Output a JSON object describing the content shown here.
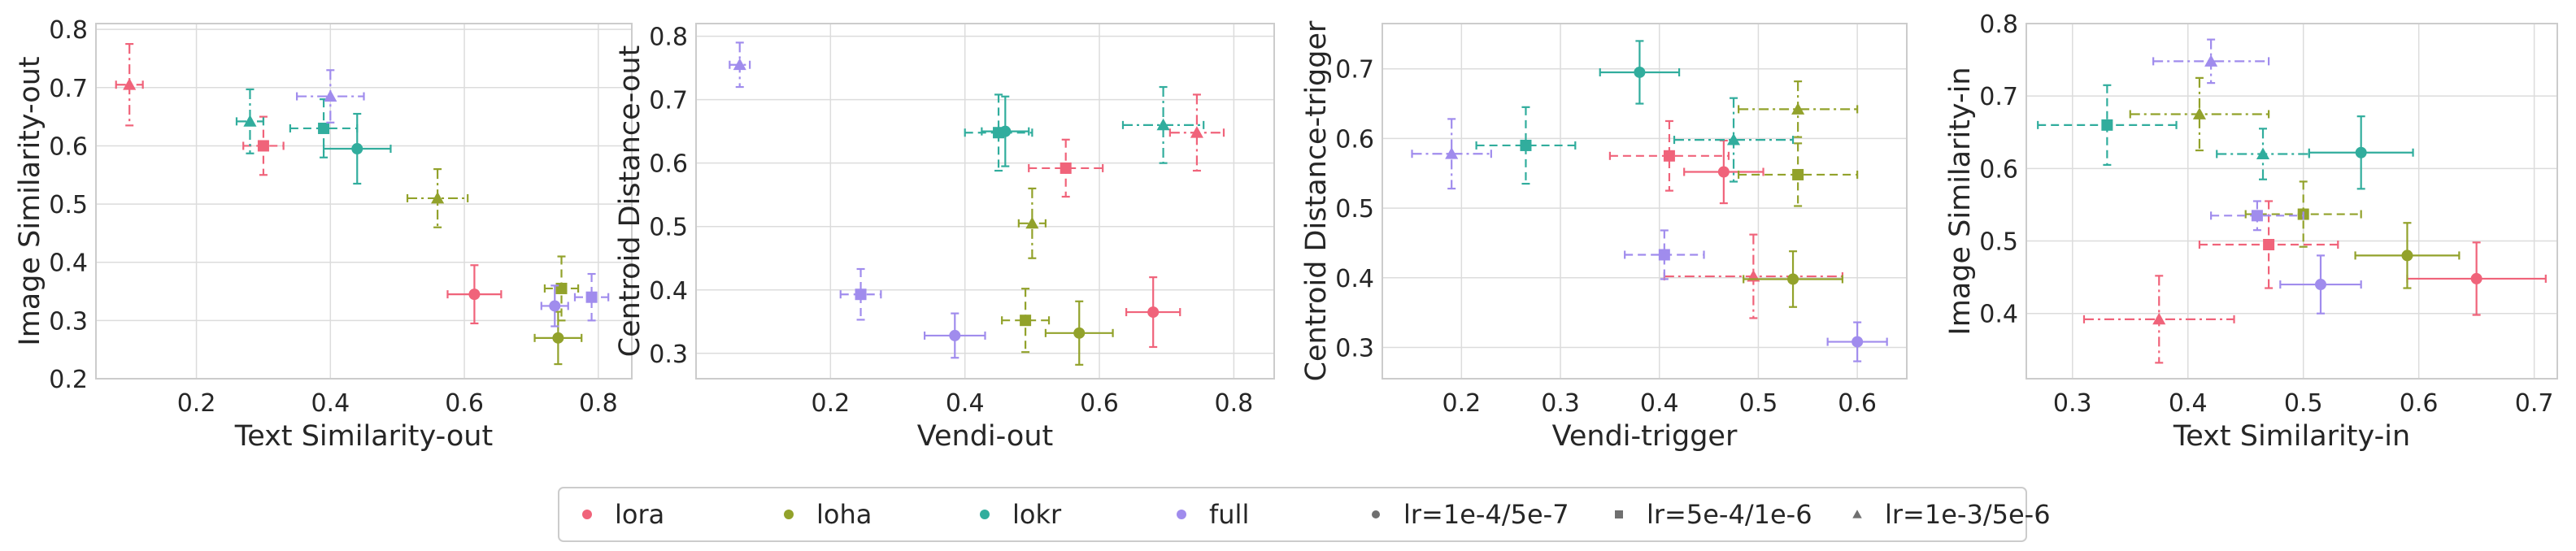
{
  "chart_data": [
    {
      "type": "scatter",
      "xlabel": "Text Similarity-out",
      "ylabel": "Image Similarity-out",
      "xlim": [
        0.05,
        0.85
      ],
      "ylim": [
        0.2,
        0.81
      ],
      "xticks": [
        "0.2",
        "0.4",
        "0.6",
        "0.8"
      ],
      "yticks": [
        "0.2",
        "0.3",
        "0.4",
        "0.5",
        "0.6",
        "0.7",
        "0.8"
      ],
      "grid": true,
      "points": [
        {
          "method": "lora",
          "lr": "lr=1e-3/5e-6",
          "x": 0.1,
          "y": 0.705,
          "xerr": 0.02,
          "yerr": 0.07
        },
        {
          "method": "lora",
          "lr": "lr=5e-4/1e-6",
          "x": 0.3,
          "y": 0.6,
          "xerr": 0.03,
          "yerr": 0.05
        },
        {
          "method": "lora",
          "lr": "lr=1e-4/5e-7",
          "x": 0.615,
          "y": 0.345,
          "xerr": 0.04,
          "yerr": 0.05
        },
        {
          "method": "loha",
          "lr": "lr=1e-3/5e-6",
          "x": 0.56,
          "y": 0.51,
          "xerr": 0.045,
          "yerr": 0.05
        },
        {
          "method": "loha",
          "lr": "lr=5e-4/1e-6",
          "x": 0.745,
          "y": 0.355,
          "xerr": 0.025,
          "yerr": 0.055
        },
        {
          "method": "loha",
          "lr": "lr=1e-4/5e-7",
          "x": 0.74,
          "y": 0.27,
          "xerr": 0.035,
          "yerr": 0.045
        },
        {
          "method": "lokr",
          "lr": "lr=1e-3/5e-6",
          "x": 0.28,
          "y": 0.642,
          "xerr": 0.02,
          "yerr": 0.055
        },
        {
          "method": "lokr",
          "lr": "lr=5e-4/1e-6",
          "x": 0.39,
          "y": 0.63,
          "xerr": 0.05,
          "yerr": 0.05
        },
        {
          "method": "lokr",
          "lr": "lr=1e-4/5e-7",
          "x": 0.44,
          "y": 0.595,
          "xerr": 0.05,
          "yerr": 0.06
        },
        {
          "method": "full",
          "lr": "lr=1e-3/5e-6",
          "x": 0.4,
          "y": 0.685,
          "xerr": 0.05,
          "yerr": 0.045
        },
        {
          "method": "full",
          "lr": "lr=5e-4/1e-6",
          "x": 0.79,
          "y": 0.34,
          "xerr": 0.025,
          "yerr": 0.04
        },
        {
          "method": "full",
          "lr": "lr=1e-4/5e-7",
          "x": 0.735,
          "y": 0.325,
          "xerr": 0.02,
          "yerr": 0.035
        }
      ]
    },
    {
      "type": "scatter",
      "xlabel": "Vendi-out",
      "ylabel": "Centroid Distance-out",
      "xlim": [
        0.0,
        0.86
      ],
      "ylim": [
        0.26,
        0.82
      ],
      "xticks": [
        "0.2",
        "0.4",
        "0.6",
        "0.8"
      ],
      "yticks": [
        "0.3",
        "0.4",
        "0.5",
        "0.6",
        "0.7",
        "0.8"
      ],
      "grid": true,
      "points": [
        {
          "method": "lora",
          "lr": "lr=1e-3/5e-6",
          "x": 0.745,
          "y": 0.648,
          "xerr": 0.04,
          "yerr": 0.06
        },
        {
          "method": "lora",
          "lr": "lr=5e-4/1e-6",
          "x": 0.55,
          "y": 0.592,
          "xerr": 0.055,
          "yerr": 0.045
        },
        {
          "method": "lora",
          "lr": "lr=1e-4/5e-7",
          "x": 0.68,
          "y": 0.365,
          "xerr": 0.04,
          "yerr": 0.055
        },
        {
          "method": "loha",
          "lr": "lr=1e-3/5e-6",
          "x": 0.5,
          "y": 0.505,
          "xerr": 0.02,
          "yerr": 0.055
        },
        {
          "method": "loha",
          "lr": "lr=5e-4/1e-6",
          "x": 0.49,
          "y": 0.352,
          "xerr": 0.035,
          "yerr": 0.05
        },
        {
          "method": "loha",
          "lr": "lr=1e-4/5e-7",
          "x": 0.57,
          "y": 0.332,
          "xerr": 0.05,
          "yerr": 0.05
        },
        {
          "method": "lokr",
          "lr": "lr=1e-3/5e-6",
          "x": 0.695,
          "y": 0.66,
          "xerr": 0.06,
          "yerr": 0.06
        },
        {
          "method": "lokr",
          "lr": "lr=5e-4/1e-6",
          "x": 0.45,
          "y": 0.648,
          "xerr": 0.05,
          "yerr": 0.06
        },
        {
          "method": "lokr",
          "lr": "lr=1e-4/5e-7",
          "x": 0.46,
          "y": 0.65,
          "xerr": 0.035,
          "yerr": 0.055
        },
        {
          "method": "full",
          "lr": "lr=1e-3/5e-6",
          "x": 0.065,
          "y": 0.755,
          "xerr": 0.015,
          "yerr": 0.035
        },
        {
          "method": "full",
          "lr": "lr=5e-4/1e-6",
          "x": 0.245,
          "y": 0.393,
          "xerr": 0.03,
          "yerr": 0.04
        },
        {
          "method": "full",
          "lr": "lr=1e-4/5e-7",
          "x": 0.385,
          "y": 0.328,
          "xerr": 0.045,
          "yerr": 0.035
        }
      ]
    },
    {
      "type": "scatter",
      "xlabel": "Vendi-trigger",
      "ylabel": "Centroid Distance-trigger",
      "xlim": [
        0.12,
        0.65
      ],
      "ylim": [
        0.255,
        0.765
      ],
      "xticks": [
        "0.2",
        "0.3",
        "0.4",
        "0.5",
        "0.6"
      ],
      "yticks": [
        "0.3",
        "0.4",
        "0.5",
        "0.6",
        "0.7"
      ],
      "grid": true,
      "points": [
        {
          "method": "lora",
          "lr": "lr=5e-4/1e-6",
          "x": 0.41,
          "y": 0.575,
          "xerr": 0.06,
          "yerr": 0.05
        },
        {
          "method": "lora",
          "lr": "lr=1e-4/5e-7",
          "x": 0.465,
          "y": 0.552,
          "xerr": 0.04,
          "yerr": 0.045
        },
        {
          "method": "lora",
          "lr": "lr=1e-3/5e-6",
          "x": 0.495,
          "y": 0.402,
          "xerr": 0.09,
          "yerr": 0.06
        },
        {
          "method": "loha",
          "lr": "lr=1e-3/5e-6",
          "x": 0.54,
          "y": 0.642,
          "xerr": 0.06,
          "yerr": 0.04
        },
        {
          "method": "loha",
          "lr": "lr=5e-4/1e-6",
          "x": 0.54,
          "y": 0.548,
          "xerr": 0.06,
          "yerr": 0.045
        },
        {
          "method": "loha",
          "lr": "lr=1e-4/5e-7",
          "x": 0.535,
          "y": 0.398,
          "xerr": 0.05,
          "yerr": 0.04
        },
        {
          "method": "lokr",
          "lr": "lr=1e-4/5e-7",
          "x": 0.38,
          "y": 0.695,
          "xerr": 0.04,
          "yerr": 0.045
        },
        {
          "method": "lokr",
          "lr": "lr=5e-4/1e-6",
          "x": 0.265,
          "y": 0.59,
          "xerr": 0.05,
          "yerr": 0.055
        },
        {
          "method": "lokr",
          "lr": "lr=1e-3/5e-6",
          "x": 0.475,
          "y": 0.598,
          "xerr": 0.06,
          "yerr": 0.06
        },
        {
          "method": "full",
          "lr": "lr=1e-3/5e-6",
          "x": 0.19,
          "y": 0.578,
          "xerr": 0.04,
          "yerr": 0.05
        },
        {
          "method": "full",
          "lr": "lr=5e-4/1e-6",
          "x": 0.405,
          "y": 0.433,
          "xerr": 0.04,
          "yerr": 0.035
        },
        {
          "method": "full",
          "lr": "lr=1e-4/5e-7",
          "x": 0.6,
          "y": 0.308,
          "xerr": 0.03,
          "yerr": 0.028
        }
      ]
    },
    {
      "type": "scatter",
      "xlabel": "Text Similarity-in",
      "ylabel": "Image Similarity-in",
      "xlim": [
        0.26,
        0.72
      ],
      "ylim": [
        0.31,
        0.8
      ],
      "xticks": [
        "0.3",
        "0.4",
        "0.5",
        "0.6",
        "0.7"
      ],
      "yticks": [
        "0.4",
        "0.5",
        "0.6",
        "0.7",
        "0.8"
      ],
      "grid": true,
      "points": [
        {
          "method": "lora",
          "lr": "lr=5e-4/1e-6",
          "x": 0.47,
          "y": 0.495,
          "xerr": 0.06,
          "yerr": 0.06
        },
        {
          "method": "lora",
          "lr": "lr=1e-4/5e-7",
          "x": 0.65,
          "y": 0.448,
          "xerr": 0.06,
          "yerr": 0.05
        },
        {
          "method": "lora",
          "lr": "lr=1e-3/5e-6",
          "x": 0.375,
          "y": 0.392,
          "xerr": 0.065,
          "yerr": 0.06
        },
        {
          "method": "loha",
          "lr": "lr=1e-3/5e-6",
          "x": 0.41,
          "y": 0.675,
          "xerr": 0.06,
          "yerr": 0.05
        },
        {
          "method": "loha",
          "lr": "lr=5e-4/1e-6",
          "x": 0.5,
          "y": 0.537,
          "xerr": 0.05,
          "yerr": 0.045
        },
        {
          "method": "loha",
          "lr": "lr=1e-4/5e-7",
          "x": 0.59,
          "y": 0.48,
          "xerr": 0.045,
          "yerr": 0.045
        },
        {
          "method": "lokr",
          "lr": "lr=5e-4/1e-6",
          "x": 0.33,
          "y": 0.66,
          "xerr": 0.06,
          "yerr": 0.055
        },
        {
          "method": "lokr",
          "lr": "lr=1e-3/5e-6",
          "x": 0.465,
          "y": 0.62,
          "xerr": 0.04,
          "yerr": 0.035
        },
        {
          "method": "lokr",
          "lr": "lr=1e-4/5e-7",
          "x": 0.55,
          "y": 0.622,
          "xerr": 0.045,
          "yerr": 0.05
        },
        {
          "method": "full",
          "lr": "lr=1e-3/5e-6",
          "x": 0.42,
          "y": 0.748,
          "xerr": 0.05,
          "yerr": 0.03
        },
        {
          "method": "full",
          "lr": "lr=5e-4/1e-6",
          "x": 0.46,
          "y": 0.535,
          "xerr": 0.04,
          "yerr": 0.02
        },
        {
          "method": "full",
          "lr": "lr=1e-4/5e-7",
          "x": 0.515,
          "y": 0.44,
          "xerr": 0.035,
          "yerr": 0.04
        }
      ]
    }
  ],
  "legend": {
    "placement": "bottom-center",
    "entries": [
      {
        "label": "lora",
        "kind": "color",
        "color": "#f0637a"
      },
      {
        "label": "loha",
        "kind": "color",
        "color": "#92a22b"
      },
      {
        "label": "lokr",
        "kind": "color",
        "color": "#31ad9d"
      },
      {
        "label": "full",
        "kind": "color",
        "color": "#a08ced"
      },
      {
        "label": "lr=1e-4/5e-7",
        "kind": "marker",
        "marker": "circle"
      },
      {
        "label": "lr=5e-4/1e-6",
        "kind": "marker",
        "marker": "square"
      },
      {
        "label": "lr=1e-3/5e-6",
        "kind": "marker",
        "marker": "triangle"
      }
    ]
  },
  "styles": {
    "method_colors": {
      "lora": "#f0637a",
      "loha": "#92a22b",
      "lokr": "#31ad9d",
      "full": "#a08ced"
    },
    "lr_markers": {
      "lr=1e-4/5e-7": "circle",
      "lr=5e-4/1e-6": "square",
      "lr=1e-3/5e-6": "triangle"
    },
    "lr_line_styles": {
      "lr=1e-4/5e-7": "solid",
      "lr=5e-4/1e-6": "dashed",
      "lr=1e-3/5e-6": "dashdot"
    },
    "grid_color": "#dcdcdc",
    "axes_color": "#cccccc"
  }
}
